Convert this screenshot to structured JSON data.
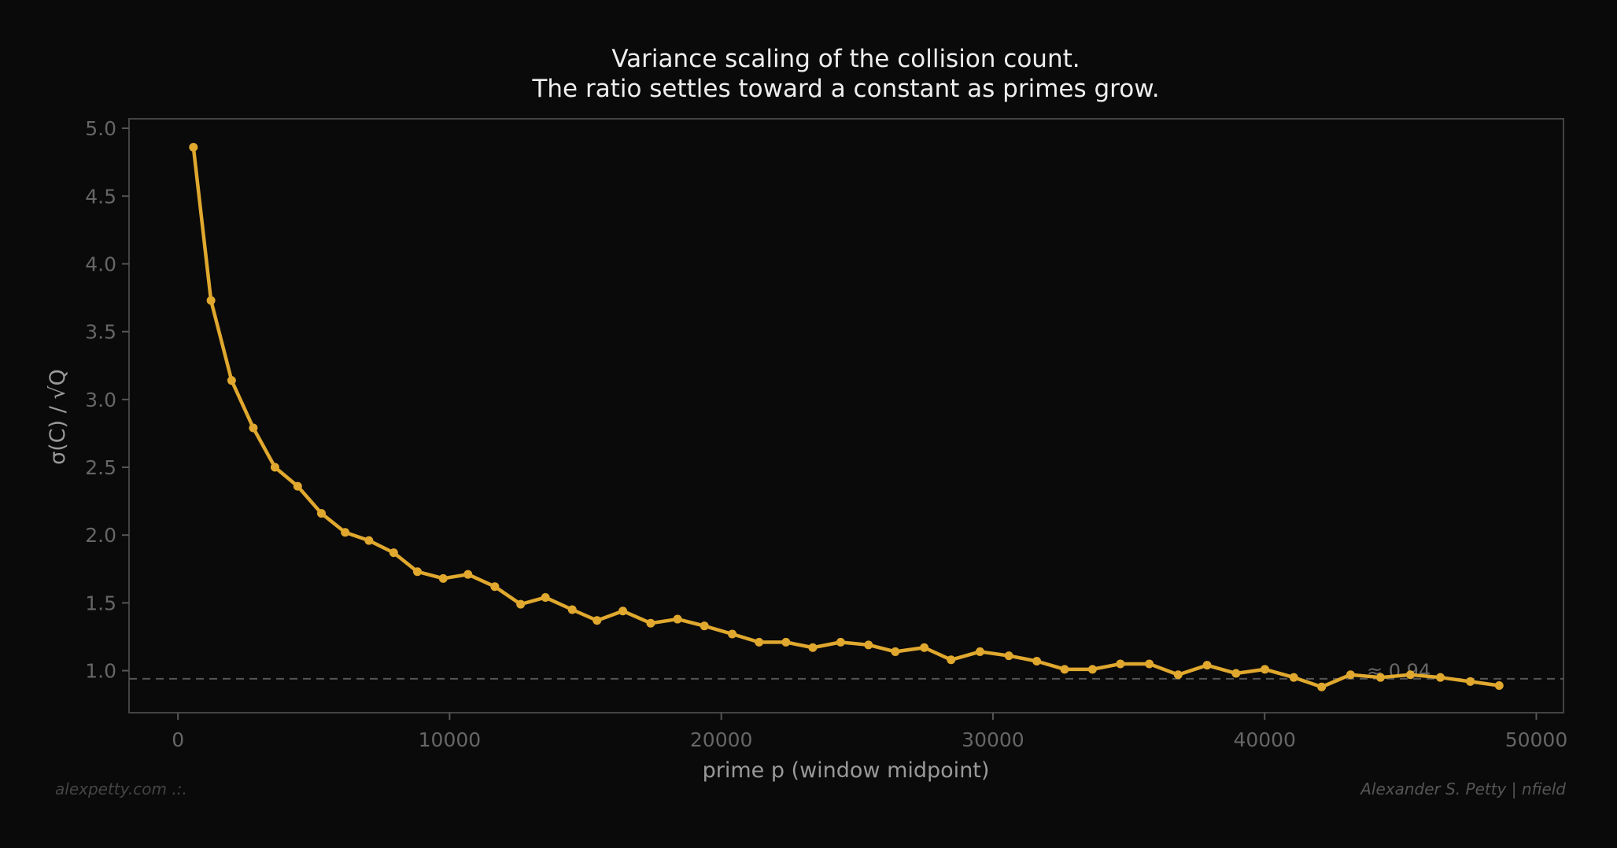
{
  "chart_data": {
    "type": "line",
    "title": "Variance scaling of the collision count.",
    "subtitle": "The ratio settles toward a constant as primes grow.",
    "xlabel": "prime p (window midpoint)",
    "ylabel": "σ(C) / √Q",
    "xlim": [
      -1800,
      51000
    ],
    "ylim": [
      0.69,
      5.07
    ],
    "xticks": [
      0,
      10000,
      20000,
      30000,
      40000,
      50000
    ],
    "yticks": [
      1.0,
      1.5,
      2.0,
      2.5,
      3.0,
      3.5,
      4.0,
      4.5,
      5.0
    ],
    "grid": false,
    "series_color": "#e0a82e",
    "x": [
      570,
      1216,
      1976,
      2774,
      3571,
      4407,
      5281,
      6155,
      7029,
      7941,
      8815,
      9764,
      10676,
      11664,
      12614,
      13526,
      14514,
      15426,
      16376,
      17401,
      18389,
      19377,
      20403,
      21391,
      22379,
      23367,
      24393,
      25418,
      26406,
      27470,
      28458,
      29522,
      30585,
      31611,
      32637,
      33663,
      34689,
      35753,
      36817,
      37881,
      38945,
      40008,
      41072,
      42098,
      43162,
      44264,
      45365,
      46467,
      47569,
      48633
    ],
    "y": [
      4.86,
      3.73,
      3.14,
      2.79,
      2.5,
      2.36,
      2.16,
      2.02,
      1.96,
      1.87,
      1.73,
      1.68,
      1.71,
      1.62,
      1.49,
      1.54,
      1.45,
      1.37,
      1.44,
      1.35,
      1.38,
      1.33,
      1.27,
      1.21,
      1.21,
      1.17,
      1.21,
      1.19,
      1.14,
      1.17,
      1.08,
      1.14,
      1.11,
      1.07,
      1.01,
      1.01,
      1.05,
      1.05,
      0.97,
      1.04,
      0.98,
      1.01,
      0.95,
      0.88,
      0.97,
      0.95,
      0.97,
      0.95,
      0.92,
      0.89
    ],
    "reference_line": {
      "y": 0.94,
      "label": "≈ 0.94",
      "style": "dashed",
      "color": "#555555"
    }
  },
  "footer": {
    "left": "alexpetty.com  .:.",
    "right": "Alexander S. Petty  |  nfield"
  }
}
